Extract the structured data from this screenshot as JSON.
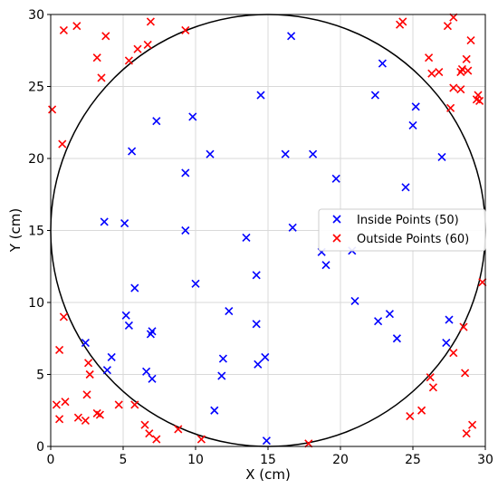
{
  "chart_data": {
    "type": "scatter",
    "title": "",
    "xlabel": "X (cm)",
    "ylabel": "Y (cm)",
    "xlim": [
      0,
      30
    ],
    "ylim": [
      0,
      30
    ],
    "x_ticks": [
      "0",
      "5",
      "10",
      "15",
      "20",
      "25",
      "30"
    ],
    "y_ticks": [
      "0",
      "5",
      "10",
      "15",
      "20",
      "25",
      "30"
    ],
    "grid": true,
    "legend_position": "center-right",
    "circle": {
      "center": [
        15,
        15
      ],
      "radius": 15,
      "color": "#000000"
    },
    "series": [
      {
        "name": "Inside Points (50)",
        "color": "#0000ff",
        "marker": "x",
        "points": [
          [
            16.6,
            28.5
          ],
          [
            14.5,
            24.4
          ],
          [
            7.3,
            22.6
          ],
          [
            9.8,
            22.9
          ],
          [
            5.6,
            20.5
          ],
          [
            11.0,
            20.3
          ],
          [
            16.2,
            20.3
          ],
          [
            18.1,
            20.3
          ],
          [
            9.3,
            19.0
          ],
          [
            19.7,
            18.6
          ],
          [
            3.7,
            15.6
          ],
          [
            5.1,
            15.5
          ],
          [
            9.3,
            15.0
          ],
          [
            16.7,
            15.2
          ],
          [
            13.5,
            14.5
          ],
          [
            18.7,
            13.5
          ],
          [
            19.0,
            12.6
          ],
          [
            20.8,
            13.6
          ],
          [
            14.2,
            11.9
          ],
          [
            5.8,
            11.0
          ],
          [
            10.0,
            11.3
          ],
          [
            5.2,
            9.1
          ],
          [
            5.4,
            8.4
          ],
          [
            12.3,
            9.4
          ],
          [
            14.2,
            8.5
          ],
          [
            7.0,
            8.0
          ],
          [
            6.9,
            7.8
          ],
          [
            2.4,
            7.2
          ],
          [
            4.2,
            6.2
          ],
          [
            3.9,
            5.3
          ],
          [
            6.6,
            5.2
          ],
          [
            7.0,
            4.7
          ],
          [
            11.8,
            4.9
          ],
          [
            11.9,
            6.1
          ],
          [
            14.3,
            5.7
          ],
          [
            14.8,
            6.2
          ],
          [
            11.3,
            2.5
          ],
          [
            14.9,
            0.4
          ],
          [
            22.4,
            24.4
          ],
          [
            22.9,
            26.6
          ],
          [
            25.2,
            23.6
          ],
          [
            25.0,
            22.3
          ],
          [
            24.5,
            18.0
          ],
          [
            27.0,
            20.1
          ],
          [
            27.5,
            8.8
          ],
          [
            27.3,
            7.2
          ],
          [
            22.6,
            8.7
          ],
          [
            23.4,
            9.2
          ],
          [
            23.9,
            7.5
          ],
          [
            21.0,
            10.1
          ]
        ]
      },
      {
        "name": "Outside Points (60)",
        "color": "#ff0000",
        "marker": "x",
        "points": [
          [
            1.8,
            29.2
          ],
          [
            0.9,
            28.9
          ],
          [
            3.8,
            28.5
          ],
          [
            3.2,
            27.0
          ],
          [
            6.9,
            29.5
          ],
          [
            9.3,
            28.9
          ],
          [
            6.0,
            27.6
          ],
          [
            6.7,
            27.9
          ],
          [
            5.4,
            26.8
          ],
          [
            3.5,
            25.6
          ],
          [
            0.1,
            23.4
          ],
          [
            0.8,
            21.0
          ],
          [
            0.9,
            9.0
          ],
          [
            0.6,
            6.7
          ],
          [
            2.6,
            5.8
          ],
          [
            2.7,
            5.0
          ],
          [
            2.5,
            3.6
          ],
          [
            1.0,
            3.1
          ],
          [
            0.4,
            2.9
          ],
          [
            3.2,
            2.3
          ],
          [
            3.4,
            2.2
          ],
          [
            4.7,
            2.9
          ],
          [
            1.9,
            2.0
          ],
          [
            0.6,
            1.9
          ],
          [
            2.4,
            1.8
          ],
          [
            5.8,
            2.9
          ],
          [
            6.5,
            1.5
          ],
          [
            6.8,
            0.9
          ],
          [
            7.3,
            0.5
          ],
          [
            8.8,
            1.2
          ],
          [
            10.4,
            0.5
          ],
          [
            17.8,
            0.2
          ],
          [
            24.1,
            29.3
          ],
          [
            24.3,
            29.5
          ],
          [
            27.8,
            29.8
          ],
          [
            27.4,
            29.2
          ],
          [
            29.0,
            28.2
          ],
          [
            26.1,
            27.0
          ],
          [
            26.8,
            26.0
          ],
          [
            26.3,
            25.9
          ],
          [
            28.7,
            26.9
          ],
          [
            28.4,
            26.2
          ],
          [
            28.8,
            26.1
          ],
          [
            28.3,
            26.0
          ],
          [
            27.8,
            24.9
          ],
          [
            28.3,
            24.8
          ],
          [
            29.5,
            24.4
          ],
          [
            29.6,
            24.0
          ],
          [
            27.6,
            23.5
          ],
          [
            29.8,
            11.4
          ],
          [
            28.5,
            8.3
          ],
          [
            27.8,
            6.5
          ],
          [
            26.2,
            4.8
          ],
          [
            26.4,
            4.1
          ],
          [
            25.6,
            2.5
          ],
          [
            24.8,
            2.1
          ],
          [
            28.6,
            5.1
          ],
          [
            29.1,
            1.5
          ],
          [
            28.7,
            0.9
          ],
          [
            29.4,
            24.1
          ]
        ]
      }
    ]
  }
}
